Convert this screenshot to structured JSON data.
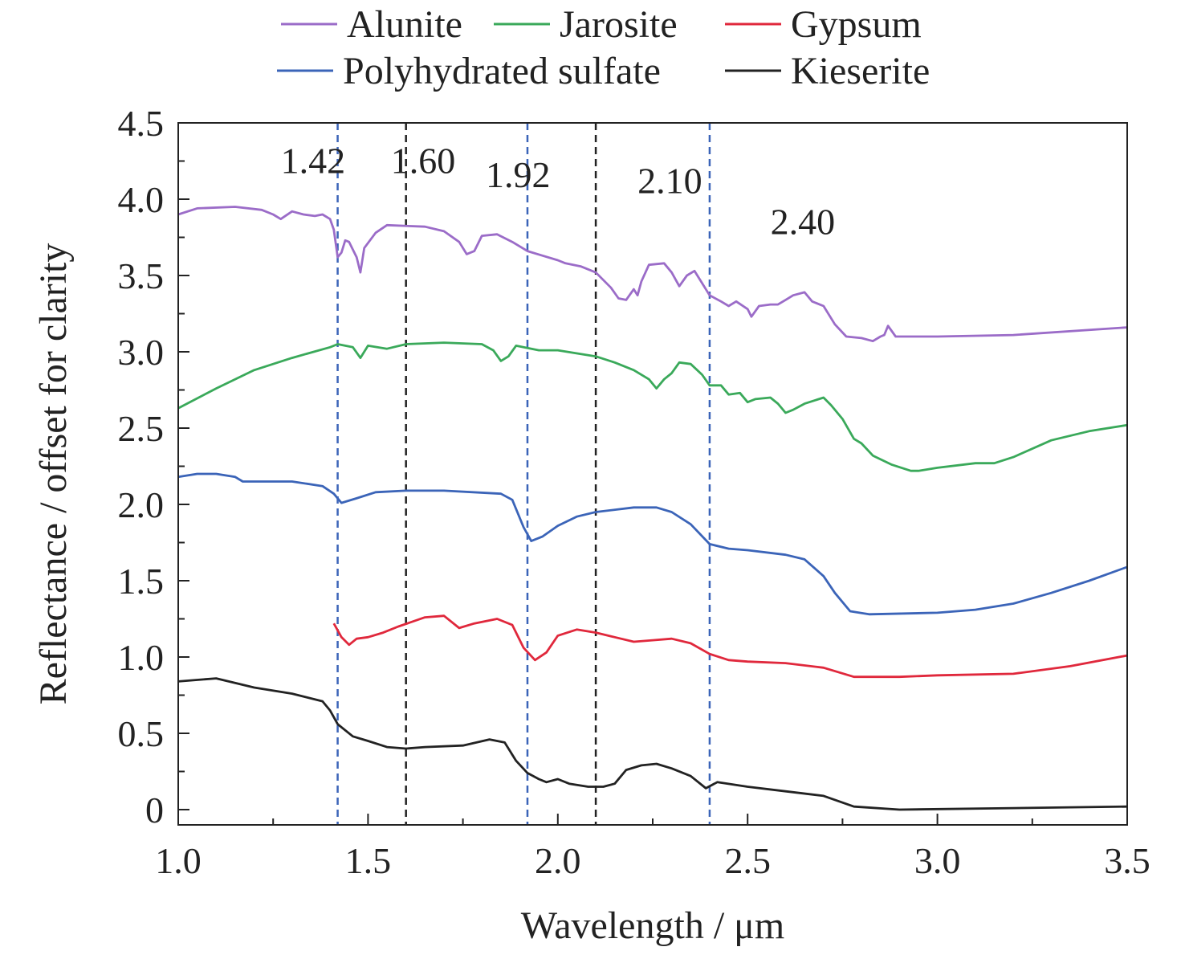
{
  "chart_data": {
    "type": "line",
    "title": "",
    "xlabel": "Wavelength / μm",
    "ylabel": "Reflectance / offset for clarity",
    "xlim": [
      1.0,
      3.5
    ],
    "ylim": [
      -0.1,
      4.5
    ],
    "xticks": [
      "1.0",
      "1.5",
      "2.0",
      "2.5",
      "3.0",
      "3.5"
    ],
    "yticks": [
      "0",
      "0.5",
      "1.0",
      "1.5",
      "2.0",
      "2.5",
      "3.0",
      "3.5",
      "4.0",
      "4.5"
    ],
    "grid": false,
    "legend_placement": "top-outside",
    "vlines": [
      {
        "x": 1.42,
        "label": "1.42",
        "color": "#3b64b8",
        "label_x": 1.27,
        "label_y": 4.17
      },
      {
        "x": 1.6,
        "label": "1.60",
        "color": "#222222",
        "label_x": 1.56,
        "label_y": 4.17
      },
      {
        "x": 1.92,
        "label": "1.92",
        "color": "#3b64b8",
        "label_x": 1.81,
        "label_y": 4.08
      },
      {
        "x": 2.1,
        "label": "2.10",
        "color": "#222222",
        "label_x": 2.21,
        "label_y": 4.04
      },
      {
        "x": 2.4,
        "label": "2.40",
        "color": "#3b64b8",
        "label_x": 2.56,
        "label_y": 3.77
      }
    ],
    "series": [
      {
        "name": "Alunite",
        "color": "#9b6cc8",
        "points": [
          [
            1.0,
            3.9
          ],
          [
            1.05,
            3.94
          ],
          [
            1.15,
            3.95
          ],
          [
            1.22,
            3.93
          ],
          [
            1.25,
            3.9
          ],
          [
            1.27,
            3.87
          ],
          [
            1.3,
            3.92
          ],
          [
            1.33,
            3.9
          ],
          [
            1.36,
            3.89
          ],
          [
            1.38,
            3.9
          ],
          [
            1.4,
            3.87
          ],
          [
            1.41,
            3.8
          ],
          [
            1.42,
            3.62
          ],
          [
            1.43,
            3.65
          ],
          [
            1.44,
            3.73
          ],
          [
            1.45,
            3.72
          ],
          [
            1.47,
            3.62
          ],
          [
            1.48,
            3.52
          ],
          [
            1.49,
            3.68
          ],
          [
            1.52,
            3.78
          ],
          [
            1.55,
            3.83
          ],
          [
            1.65,
            3.82
          ],
          [
            1.7,
            3.79
          ],
          [
            1.74,
            3.72
          ],
          [
            1.76,
            3.64
          ],
          [
            1.78,
            3.66
          ],
          [
            1.8,
            3.76
          ],
          [
            1.84,
            3.77
          ],
          [
            1.88,
            3.72
          ],
          [
            1.92,
            3.66
          ],
          [
            1.96,
            3.63
          ],
          [
            2.0,
            3.6
          ],
          [
            2.02,
            3.58
          ],
          [
            2.06,
            3.56
          ],
          [
            2.1,
            3.52
          ],
          [
            2.14,
            3.42
          ],
          [
            2.16,
            3.35
          ],
          [
            2.18,
            3.34
          ],
          [
            2.2,
            3.41
          ],
          [
            2.21,
            3.37
          ],
          [
            2.22,
            3.46
          ],
          [
            2.24,
            3.57
          ],
          [
            2.28,
            3.58
          ],
          [
            2.3,
            3.52
          ],
          [
            2.32,
            3.43
          ],
          [
            2.34,
            3.5
          ],
          [
            2.36,
            3.53
          ],
          [
            2.38,
            3.45
          ],
          [
            2.4,
            3.37
          ],
          [
            2.43,
            3.33
          ],
          [
            2.45,
            3.3
          ],
          [
            2.47,
            3.33
          ],
          [
            2.5,
            3.28
          ],
          [
            2.51,
            3.23
          ],
          [
            2.53,
            3.3
          ],
          [
            2.56,
            3.31
          ],
          [
            2.58,
            3.31
          ],
          [
            2.6,
            3.34
          ],
          [
            2.62,
            3.37
          ],
          [
            2.65,
            3.39
          ],
          [
            2.67,
            3.33
          ],
          [
            2.7,
            3.3
          ],
          [
            2.73,
            3.18
          ],
          [
            2.76,
            3.1
          ],
          [
            2.8,
            3.09
          ],
          [
            2.83,
            3.07
          ],
          [
            2.85,
            3.1
          ],
          [
            2.86,
            3.11
          ],
          [
            2.87,
            3.17
          ],
          [
            2.89,
            3.1
          ],
          [
            3.0,
            3.1
          ],
          [
            3.2,
            3.11
          ],
          [
            3.5,
            3.16
          ]
        ]
      },
      {
        "name": "Jarosite",
        "color": "#3aa95a",
        "points": [
          [
            1.0,
            2.63
          ],
          [
            1.1,
            2.76
          ],
          [
            1.2,
            2.88
          ],
          [
            1.3,
            2.96
          ],
          [
            1.4,
            3.03
          ],
          [
            1.42,
            3.05
          ],
          [
            1.46,
            3.03
          ],
          [
            1.48,
            2.96
          ],
          [
            1.5,
            3.04
          ],
          [
            1.55,
            3.02
          ],
          [
            1.6,
            3.05
          ],
          [
            1.7,
            3.06
          ],
          [
            1.8,
            3.05
          ],
          [
            1.83,
            3.01
          ],
          [
            1.85,
            2.94
          ],
          [
            1.87,
            2.97
          ],
          [
            1.89,
            3.04
          ],
          [
            1.95,
            3.01
          ],
          [
            2.0,
            3.01
          ],
          [
            2.1,
            2.97
          ],
          [
            2.15,
            2.93
          ],
          [
            2.2,
            2.88
          ],
          [
            2.24,
            2.82
          ],
          [
            2.26,
            2.76
          ],
          [
            2.28,
            2.82
          ],
          [
            2.3,
            2.86
          ],
          [
            2.32,
            2.93
          ],
          [
            2.35,
            2.92
          ],
          [
            2.38,
            2.85
          ],
          [
            2.4,
            2.78
          ],
          [
            2.43,
            2.78
          ],
          [
            2.45,
            2.72
          ],
          [
            2.48,
            2.73
          ],
          [
            2.5,
            2.67
          ],
          [
            2.52,
            2.69
          ],
          [
            2.56,
            2.7
          ],
          [
            2.58,
            2.66
          ],
          [
            2.6,
            2.6
          ],
          [
            2.62,
            2.62
          ],
          [
            2.65,
            2.66
          ],
          [
            2.7,
            2.7
          ],
          [
            2.72,
            2.65
          ],
          [
            2.75,
            2.56
          ],
          [
            2.78,
            2.43
          ],
          [
            2.8,
            2.4
          ],
          [
            2.83,
            2.32
          ],
          [
            2.88,
            2.26
          ],
          [
            2.93,
            2.22
          ],
          [
            2.95,
            2.22
          ],
          [
            3.0,
            2.24
          ],
          [
            3.1,
            2.27
          ],
          [
            3.15,
            2.27
          ],
          [
            3.2,
            2.31
          ],
          [
            3.3,
            2.42
          ],
          [
            3.4,
            2.48
          ],
          [
            3.5,
            2.52
          ]
        ]
      },
      {
        "name": "Gypsum",
        "color": "#e0283c",
        "points": [
          [
            1.41,
            1.22
          ],
          [
            1.43,
            1.13
          ],
          [
            1.45,
            1.08
          ],
          [
            1.47,
            1.12
          ],
          [
            1.5,
            1.13
          ],
          [
            1.54,
            1.16
          ],
          [
            1.58,
            1.2
          ],
          [
            1.65,
            1.26
          ],
          [
            1.7,
            1.27
          ],
          [
            1.74,
            1.19
          ],
          [
            1.78,
            1.22
          ],
          [
            1.84,
            1.25
          ],
          [
            1.88,
            1.21
          ],
          [
            1.91,
            1.06
          ],
          [
            1.94,
            0.98
          ],
          [
            1.97,
            1.03
          ],
          [
            2.0,
            1.14
          ],
          [
            2.05,
            1.18
          ],
          [
            2.1,
            1.16
          ],
          [
            2.15,
            1.13
          ],
          [
            2.2,
            1.1
          ],
          [
            2.25,
            1.11
          ],
          [
            2.3,
            1.12
          ],
          [
            2.35,
            1.09
          ],
          [
            2.4,
            1.02
          ],
          [
            2.45,
            0.98
          ],
          [
            2.5,
            0.97
          ],
          [
            2.6,
            0.96
          ],
          [
            2.7,
            0.93
          ],
          [
            2.78,
            0.87
          ],
          [
            2.9,
            0.87
          ],
          [
            3.0,
            0.88
          ],
          [
            3.2,
            0.89
          ],
          [
            3.35,
            0.94
          ],
          [
            3.5,
            1.01
          ]
        ]
      },
      {
        "name": "Polyhydrated sulfate",
        "color": "#3b64b8",
        "points": [
          [
            1.0,
            2.18
          ],
          [
            1.05,
            2.2
          ],
          [
            1.1,
            2.2
          ],
          [
            1.15,
            2.18
          ],
          [
            1.17,
            2.15
          ],
          [
            1.3,
            2.15
          ],
          [
            1.38,
            2.12
          ],
          [
            1.41,
            2.07
          ],
          [
            1.43,
            2.01
          ],
          [
            1.47,
            2.04
          ],
          [
            1.52,
            2.08
          ],
          [
            1.6,
            2.09
          ],
          [
            1.7,
            2.09
          ],
          [
            1.85,
            2.07
          ],
          [
            1.88,
            2.03
          ],
          [
            1.91,
            1.85
          ],
          [
            1.93,
            1.76
          ],
          [
            1.96,
            1.79
          ],
          [
            2.0,
            1.86
          ],
          [
            2.05,
            1.92
          ],
          [
            2.1,
            1.95
          ],
          [
            2.2,
            1.98
          ],
          [
            2.26,
            1.98
          ],
          [
            2.3,
            1.95
          ],
          [
            2.35,
            1.87
          ],
          [
            2.4,
            1.74
          ],
          [
            2.45,
            1.71
          ],
          [
            2.5,
            1.7
          ],
          [
            2.6,
            1.67
          ],
          [
            2.65,
            1.64
          ],
          [
            2.7,
            1.53
          ],
          [
            2.73,
            1.42
          ],
          [
            2.77,
            1.3
          ],
          [
            2.82,
            1.28
          ],
          [
            3.0,
            1.29
          ],
          [
            3.1,
            1.31
          ],
          [
            3.2,
            1.35
          ],
          [
            3.3,
            1.42
          ],
          [
            3.4,
            1.5
          ],
          [
            3.5,
            1.59
          ]
        ]
      },
      {
        "name": "Kieserite",
        "color": "#222222",
        "points": [
          [
            1.0,
            0.84
          ],
          [
            1.1,
            0.86
          ],
          [
            1.2,
            0.8
          ],
          [
            1.3,
            0.76
          ],
          [
            1.38,
            0.71
          ],
          [
            1.4,
            0.65
          ],
          [
            1.42,
            0.56
          ],
          [
            1.46,
            0.48
          ],
          [
            1.5,
            0.45
          ],
          [
            1.55,
            0.41
          ],
          [
            1.6,
            0.4
          ],
          [
            1.65,
            0.41
          ],
          [
            1.75,
            0.42
          ],
          [
            1.82,
            0.46
          ],
          [
            1.86,
            0.44
          ],
          [
            1.89,
            0.32
          ],
          [
            1.92,
            0.24
          ],
          [
            1.95,
            0.2
          ],
          [
            1.97,
            0.18
          ],
          [
            2.0,
            0.2
          ],
          [
            2.03,
            0.17
          ],
          [
            2.08,
            0.15
          ],
          [
            2.12,
            0.15
          ],
          [
            2.15,
            0.17
          ],
          [
            2.18,
            0.26
          ],
          [
            2.22,
            0.29
          ],
          [
            2.26,
            0.3
          ],
          [
            2.3,
            0.27
          ],
          [
            2.35,
            0.22
          ],
          [
            2.39,
            0.14
          ],
          [
            2.42,
            0.18
          ],
          [
            2.5,
            0.15
          ],
          [
            2.6,
            0.12
          ],
          [
            2.7,
            0.09
          ],
          [
            2.78,
            0.02
          ],
          [
            2.9,
            0.0
          ],
          [
            3.2,
            0.01
          ],
          [
            3.5,
            0.02
          ]
        ]
      }
    ]
  }
}
